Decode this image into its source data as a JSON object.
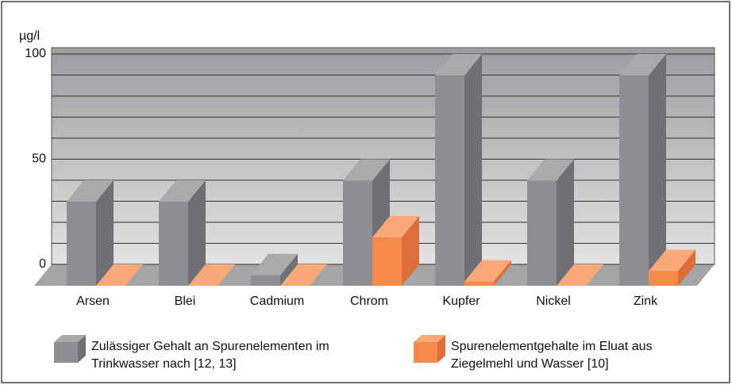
{
  "chart_data": {
    "type": "bar3d",
    "y_unit_label": "µg/l",
    "categories": [
      "Arsen",
      "Blei",
      "Cadmium",
      "Chrom",
      "Kupfer",
      "Nickel",
      "Zink"
    ],
    "series": [
      {
        "name": "Zulässiger Gehalt an Spurenelementen im Trinkwasser nach [12, 13]",
        "color": "#8e8f92",
        "values": [
          40,
          40,
          5,
          50,
          100,
          50,
          100
        ]
      },
      {
        "name": "Spurenelementgehalte im Eluat aus Ziegelmehl und Wasser [10]",
        "color": "#f58a4b",
        "values": [
          0,
          0,
          0,
          23,
          2,
          0,
          7
        ]
      }
    ],
    "ylim": [
      0,
      100
    ],
    "yticks": [
      0,
      50,
      100
    ],
    "ygrid": [
      0,
      10,
      20,
      30,
      40,
      50,
      60,
      70,
      80,
      90,
      100
    ]
  }
}
